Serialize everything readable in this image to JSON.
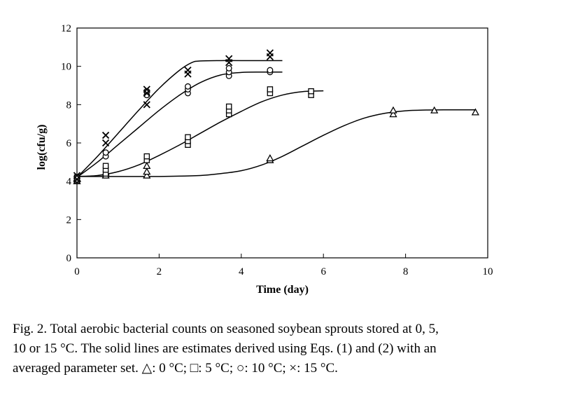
{
  "chart_data": {
    "type": "scatter",
    "xlabel": "Time (day)",
    "ylabel": "log(cfu/g)",
    "xlim": [
      0,
      10
    ],
    "ylim": [
      0,
      12
    ],
    "xticks": [
      0,
      2,
      4,
      6,
      8,
      10
    ],
    "yticks": [
      0,
      2,
      4,
      6,
      8,
      10,
      12
    ],
    "xtick_labels": [
      "0",
      "2",
      "4",
      "6",
      "8",
      "10"
    ],
    "ytick_labels": [
      "0",
      "2",
      "4",
      "6",
      "8",
      "10",
      "12"
    ],
    "grid": false,
    "series": [
      {
        "marker": "triangle",
        "points": [
          [
            0,
            4.0
          ],
          [
            0,
            4.15
          ],
          [
            0.7,
            4.3
          ],
          [
            0.7,
            4.45
          ],
          [
            1.7,
            4.3
          ],
          [
            1.7,
            4.5
          ],
          [
            1.7,
            4.8
          ],
          [
            4.7,
            5.1
          ],
          [
            4.7,
            5.2
          ],
          [
            7.7,
            7.5
          ],
          [
            7.7,
            7.7
          ],
          [
            8.7,
            7.7
          ],
          [
            9.7,
            7.6
          ]
        ],
        "fit": [
          [
            0,
            4.25
          ],
          [
            1,
            4.25
          ],
          [
            2,
            4.25
          ],
          [
            3,
            4.3
          ],
          [
            3.5,
            4.4
          ],
          [
            4,
            4.55
          ],
          [
            4.5,
            4.85
          ],
          [
            5,
            5.3
          ],
          [
            5.5,
            5.85
          ],
          [
            6,
            6.4
          ],
          [
            6.5,
            6.9
          ],
          [
            7,
            7.3
          ],
          [
            7.5,
            7.55
          ],
          [
            8,
            7.68
          ],
          [
            8.5,
            7.72
          ],
          [
            9,
            7.73
          ],
          [
            9.7,
            7.73
          ]
        ]
      },
      {
        "marker": "square",
        "points": [
          [
            0,
            4.05
          ],
          [
            0,
            4.2
          ],
          [
            0.7,
            4.4
          ],
          [
            0.7,
            4.6
          ],
          [
            0.7,
            4.8
          ],
          [
            1.7,
            5.1
          ],
          [
            1.7,
            5.3
          ],
          [
            2.7,
            5.9
          ],
          [
            2.7,
            6.1
          ],
          [
            2.7,
            6.3
          ],
          [
            3.7,
            7.5
          ],
          [
            3.7,
            7.7
          ],
          [
            3.7,
            7.9
          ],
          [
            4.7,
            8.6
          ],
          [
            4.7,
            8.8
          ],
          [
            5.7,
            8.5
          ],
          [
            5.7,
            8.7
          ]
        ],
        "fit": [
          [
            0,
            4.25
          ],
          [
            0.5,
            4.3
          ],
          [
            1,
            4.5
          ],
          [
            1.5,
            4.85
          ],
          [
            2,
            5.35
          ],
          [
            2.5,
            5.9
          ],
          [
            3,
            6.5
          ],
          [
            3.5,
            7.1
          ],
          [
            4,
            7.65
          ],
          [
            4.5,
            8.15
          ],
          [
            5,
            8.5
          ],
          [
            5.5,
            8.68
          ],
          [
            6.0,
            8.72
          ]
        ]
      },
      {
        "marker": "circle",
        "points": [
          [
            0,
            4.1
          ],
          [
            0,
            4.2
          ],
          [
            0.7,
            5.3
          ],
          [
            0.7,
            5.5
          ],
          [
            1.7,
            8.5
          ],
          [
            1.7,
            8.7
          ],
          [
            2.7,
            8.6
          ],
          [
            2.7,
            8.8
          ],
          [
            2.7,
            8.95
          ],
          [
            3.7,
            9.5
          ],
          [
            3.7,
            9.7
          ],
          [
            3.7,
            9.9
          ],
          [
            4.7,
            9.7
          ],
          [
            4.7,
            9.8
          ]
        ],
        "fit": [
          [
            0,
            4.2
          ],
          [
            0.5,
            5.0
          ],
          [
            1,
            5.9
          ],
          [
            1.5,
            6.8
          ],
          [
            2,
            7.7
          ],
          [
            2.5,
            8.5
          ],
          [
            3,
            9.15
          ],
          [
            3.5,
            9.55
          ],
          [
            4,
            9.68
          ],
          [
            4.5,
            9.7
          ],
          [
            5.0,
            9.7
          ]
        ]
      },
      {
        "marker": "x",
        "points": [
          [
            0,
            4.1
          ],
          [
            0,
            4.3
          ],
          [
            0.7,
            6.0
          ],
          [
            0.7,
            6.4
          ],
          [
            1.7,
            8.0
          ],
          [
            1.7,
            8.6
          ],
          [
            1.7,
            8.8
          ],
          [
            2.7,
            9.6
          ],
          [
            2.7,
            9.8
          ],
          [
            3.7,
            10.2
          ],
          [
            3.7,
            10.4
          ],
          [
            4.7,
            10.5
          ],
          [
            4.7,
            10.7
          ]
        ],
        "fit": [
          [
            0,
            4.2
          ],
          [
            0.5,
            5.3
          ],
          [
            1,
            6.5
          ],
          [
            1.5,
            7.7
          ],
          [
            2,
            8.85
          ],
          [
            2.5,
            9.8
          ],
          [
            2.8,
            10.2
          ],
          [
            3.0,
            10.28
          ],
          [
            3.5,
            10.3
          ],
          [
            4,
            10.3
          ],
          [
            5.0,
            10.3
          ]
        ]
      }
    ]
  },
  "caption": {
    "line1": "Fig. 2. Total aerobic bacterial counts on seasoned soybean sprouts stored at 0, 5,",
    "line2": "10 or 15 °C. The solid lines are estimates derived using Eqs. (1) and (2) with an",
    "line3": "averaged parameter set. △: 0 °C; □: 5 °C; ○: 10 °C; ×: 15 °C."
  }
}
